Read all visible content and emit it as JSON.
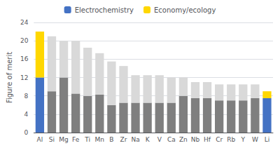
{
  "chart_data": {
    "type": "bar",
    "stacked": true,
    "categories": [
      "Al",
      "Si",
      "Mg",
      "Fe",
      "Ti",
      "Mn",
      "B",
      "Zr",
      "Na",
      "K",
      "V",
      "Ca",
      "Zn",
      "Nb",
      "Hf",
      "Cr",
      "Rb",
      "Y",
      "W",
      "Li"
    ],
    "series": [
      {
        "name": "Electrochemistry",
        "values": [
          12.0,
          9.0,
          12.0,
          8.5,
          8.0,
          8.3,
          6.0,
          6.5,
          6.5,
          6.5,
          6.5,
          6.5,
          8.0,
          7.5,
          7.5,
          7.0,
          7.0,
          7.0,
          7.5,
          7.5
        ],
        "colors": [
          "#4472c4",
          "#7f7f7f",
          "#7f7f7f",
          "#7f7f7f",
          "#7f7f7f",
          "#7f7f7f",
          "#7f7f7f",
          "#7f7f7f",
          "#7f7f7f",
          "#7f7f7f",
          "#7f7f7f",
          "#7f7f7f",
          "#7f7f7f",
          "#7f7f7f",
          "#7f7f7f",
          "#7f7f7f",
          "#7f7f7f",
          "#7f7f7f",
          "#7f7f7f",
          "#4472c4"
        ]
      },
      {
        "name": "Economy/ecology",
        "values": [
          10.0,
          12.0,
          8.0,
          11.5,
          10.5,
          9.0,
          9.5,
          8.0,
          6.0,
          6.0,
          6.0,
          5.5,
          4.0,
          3.5,
          3.5,
          3.5,
          3.5,
          3.5,
          3.0,
          1.5
        ],
        "colors": [
          "#ffd700",
          "#d9d9d9",
          "#d9d9d9",
          "#d9d9d9",
          "#d9d9d9",
          "#d9d9d9",
          "#d9d9d9",
          "#d9d9d9",
          "#d9d9d9",
          "#d9d9d9",
          "#d9d9d9",
          "#d9d9d9",
          "#d9d9d9",
          "#d9d9d9",
          "#d9d9d9",
          "#d9d9d9",
          "#d9d9d9",
          "#d9d9d9",
          "#d9d9d9",
          "#ffd700"
        ]
      }
    ],
    "ylabel": "Figure of merit",
    "ylim": [
      0,
      24
    ],
    "yticks": [
      0,
      4,
      8,
      12,
      16,
      20,
      24
    ],
    "grid": true,
    "legend": "top"
  }
}
